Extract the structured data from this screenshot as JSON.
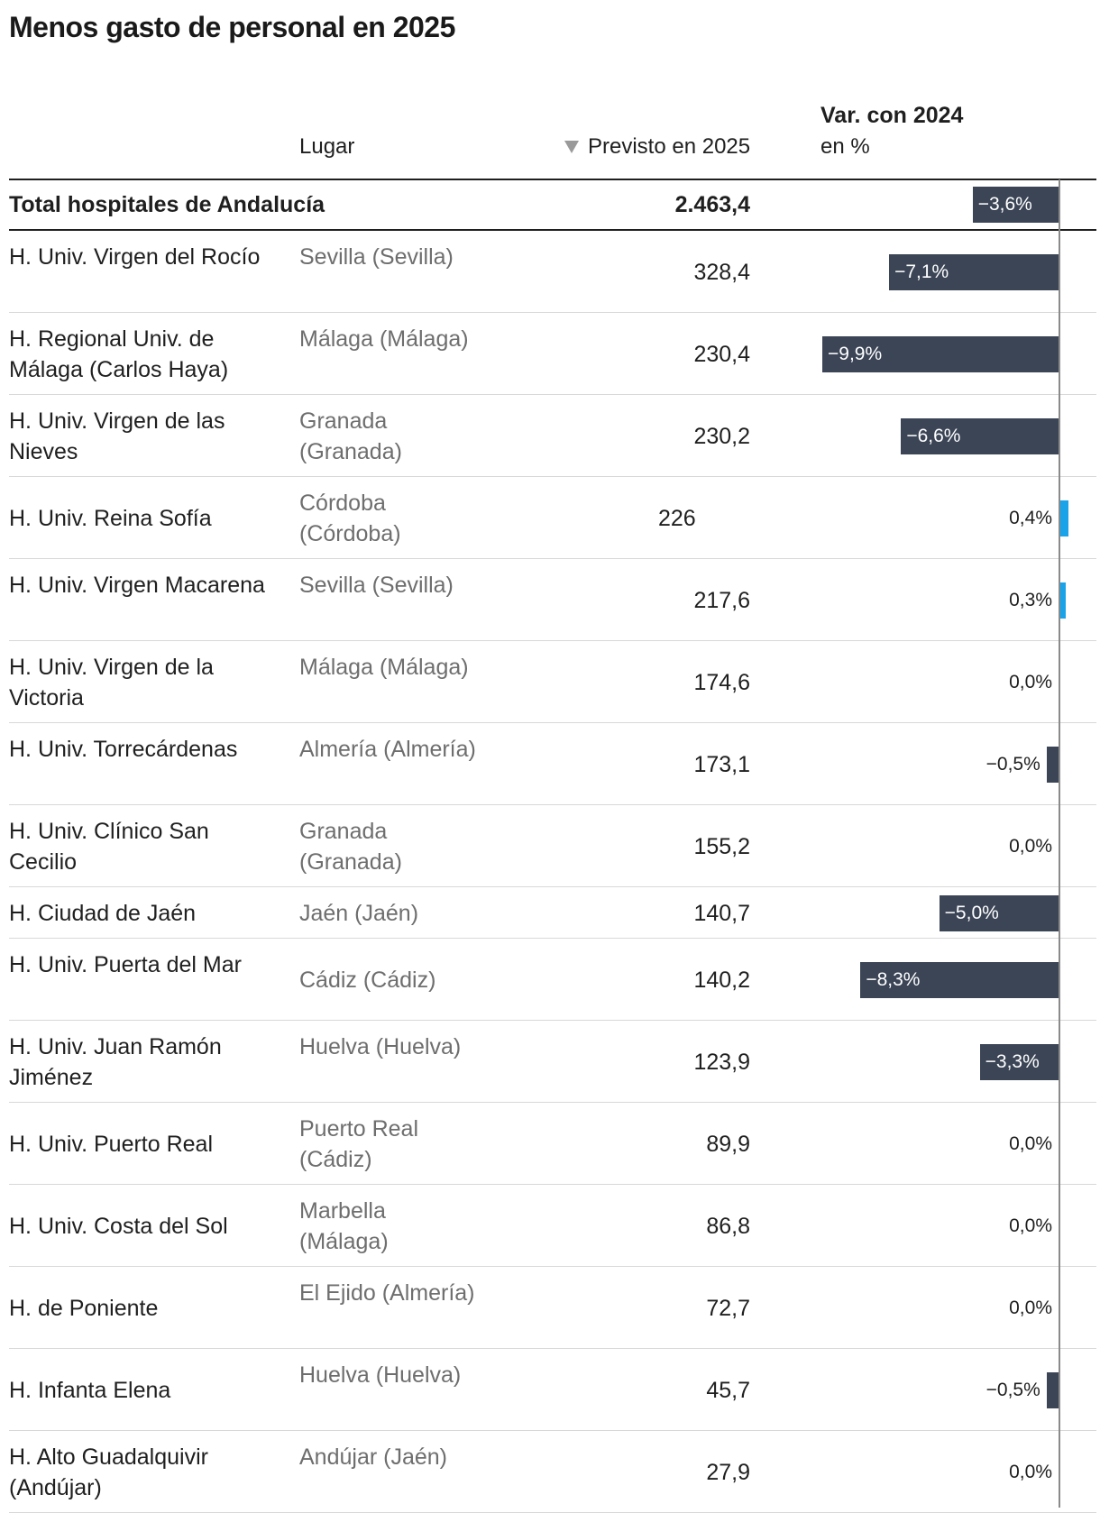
{
  "title": "Menos gasto de personal en 2025",
  "headers": {
    "place": "Lugar",
    "value": "Previsto en 2025",
    "var_title": "Var. con 2024",
    "var_unit": "en %"
  },
  "colors": {
    "negative_bar": "#3b4556",
    "positive_bar": "#1aa3e8",
    "axis": "#8a8a8a"
  },
  "chart_data": {
    "type": "table",
    "title": "Menos gasto de personal en 2025",
    "columns": [
      "",
      "Lugar",
      "Previsto en 2025",
      "Var. con 2024 en %"
    ],
    "bar_domain": [
      -9.9,
      0.4
    ],
    "total": {
      "name": "Total hospitales de Andalucía",
      "value_label": "2.463,4",
      "value": 2463.4,
      "change": -3.6,
      "change_label": "−3,6%"
    },
    "rows": [
      {
        "name": "H. Univ. Virgen del Rocío",
        "place": "Sevilla (Sevilla)",
        "value_label": "328,4",
        "value": 328.4,
        "change": -7.1,
        "change_label": "−7,1%"
      },
      {
        "name": "H. Regional Univ. de Málaga (Carlos Haya)",
        "place": "Málaga (Málaga)",
        "value_label": "230,4",
        "value": 230.4,
        "change": -9.9,
        "change_label": "−9,9%"
      },
      {
        "name": "H. Univ. Virgen de las Nieves",
        "place": "Granada (Granada)",
        "value_label": "230,2",
        "value": 230.2,
        "change": -6.6,
        "change_label": "−6,6%"
      },
      {
        "name": "H. Univ. Reina Sofía",
        "place": "Córdoba (Córdoba)",
        "value_label": "226",
        "value": 226,
        "change": 0.4,
        "change_label": "0,4%"
      },
      {
        "name": "H. Univ. Virgen Macarena",
        "place": "Sevilla (Sevilla)",
        "value_label": "217,6",
        "value": 217.6,
        "change": 0.3,
        "change_label": "0,3%"
      },
      {
        "name": "H. Univ. Virgen de la Victoria",
        "place": "Málaga (Málaga)",
        "value_label": "174,6",
        "value": 174.6,
        "change": 0.0,
        "change_label": "0,0%"
      },
      {
        "name": "H. Univ. Torrecárdenas",
        "place": "Almería (Almería)",
        "value_label": "173,1",
        "value": 173.1,
        "change": -0.5,
        "change_label": "−0,5%"
      },
      {
        "name": "H. Univ. Clínico San Cecilio",
        "place": "Granada (Granada)",
        "value_label": "155,2",
        "value": 155.2,
        "change": 0.0,
        "change_label": "0,0%"
      },
      {
        "name": "H. Ciudad de Jaén",
        "place": "Jaén (Jaén)",
        "value_label": "140,7",
        "value": 140.7,
        "change": -5.0,
        "change_label": "−5,0%"
      },
      {
        "name": "H. Univ. Puerta del Mar",
        "place": "Cádiz (Cádiz)",
        "value_label": "140,2",
        "value": 140.2,
        "change": -8.3,
        "change_label": "−8,3%"
      },
      {
        "name": "H. Univ. Juan Ramón Jiménez",
        "place": "Huelva (Huelva)",
        "value_label": "123,9",
        "value": 123.9,
        "change": -3.3,
        "change_label": "−3,3%"
      },
      {
        "name": "H. Univ. Puerto Real",
        "place": "Puerto Real (Cádiz)",
        "value_label": "89,9",
        "value": 89.9,
        "change": 0.0,
        "change_label": "0,0%"
      },
      {
        "name": "H. Univ. Costa del Sol",
        "place": "Marbella (Málaga)",
        "value_label": "86,8",
        "value": 86.8,
        "change": 0.0,
        "change_label": "0,0%"
      },
      {
        "name": "H. de Poniente",
        "place": "El Ejido (Almería)",
        "value_label": "72,7",
        "value": 72.7,
        "change": 0.0,
        "change_label": "0,0%"
      },
      {
        "name": "H. Infanta Elena",
        "place": "Huelva (Huelva)",
        "value_label": "45,7",
        "value": 45.7,
        "change": -0.5,
        "change_label": "−0,5%"
      },
      {
        "name": "H. Alto Guadalquivir (Andújar)",
        "place": "Andújar (Jaén)",
        "value_label": "27,9",
        "value": 27.9,
        "change": 0.0,
        "change_label": "0,0%"
      }
    ]
  }
}
